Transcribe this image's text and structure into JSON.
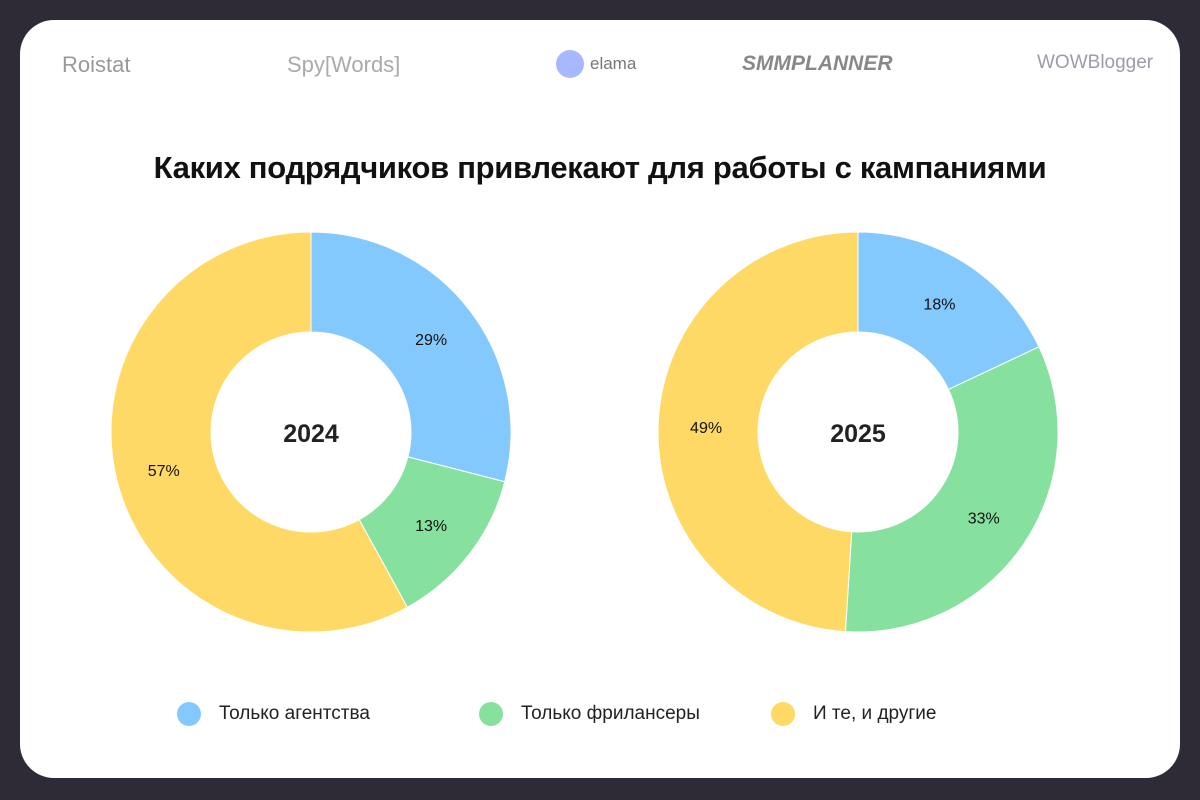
{
  "logos": [
    "Roistat",
    "Spy[Words]",
    "elama",
    "SMMPLANNER",
    "WOWBlogger"
  ],
  "chart_data": {
    "type": "pie",
    "title": "Каких подрядчиков привлекают для работы с кампаниями",
    "categories": [
      "Только агентства",
      "Только фрилансеры",
      "И те, и другие"
    ],
    "colors": [
      "#84c9fe",
      "#86e09e",
      "#ffd966"
    ],
    "charts": [
      {
        "label": "2024",
        "values": [
          29,
          13,
          57
        ]
      },
      {
        "label": "2025",
        "values": [
          18,
          33,
          49
        ]
      }
    ],
    "legend": "bottom"
  }
}
